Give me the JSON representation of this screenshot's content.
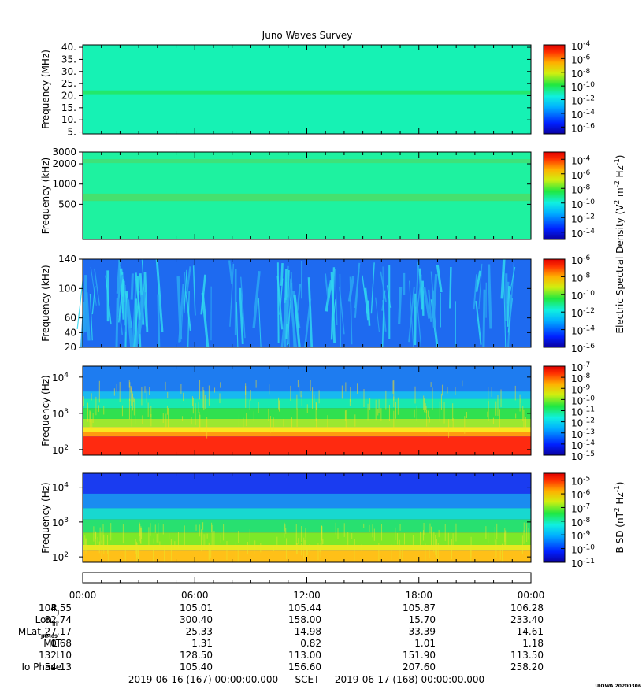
{
  "chart_data": {
    "type": "heatmap",
    "title": "Juno Waves Survey",
    "panels": [
      {
        "ylabel": "Frequency (MHz)",
        "yscale": "linear",
        "ylim": [
          4.2,
          41
        ],
        "yticks": [
          "40.",
          "35.",
          "30.",
          "25.",
          "20.",
          "15.",
          "10.",
          "5."
        ],
        "ytick_values": [
          40,
          35,
          30,
          25,
          20,
          15,
          10,
          5
        ],
        "colorbar_ticks": [
          {
            "b": "10",
            "e": "-4"
          },
          {
            "b": "10",
            "e": "-6"
          },
          {
            "b": "10",
            "e": "-8"
          },
          {
            "b": "10",
            "e": "-10"
          },
          {
            "b": "10",
            "e": "-12"
          },
          {
            "b": "10",
            "e": "-14"
          },
          {
            "b": "10",
            "e": "-16"
          }
        ],
        "colorbar_range_exp": [
          -17,
          -4
        ],
        "background": "#16f2b4",
        "bands": [
          {
            "y_lo": 20.6,
            "y_hi": 22.2,
            "color": "#22e86c"
          }
        ]
      },
      {
        "ylabel": "Frequency (kHz)",
        "yscale": "log",
        "ylim": [
          150,
          3000
        ],
        "yticks": [
          "3000",
          "2000",
          "1000",
          "500"
        ],
        "ytick_values": [
          3000,
          2000,
          1000,
          500
        ],
        "colorbar_ticks": [
          {
            "b": "10",
            "e": "-4"
          },
          {
            "b": "10",
            "e": "-6"
          },
          {
            "b": "10",
            "e": "-8"
          },
          {
            "b": "10",
            "e": "-10"
          },
          {
            "b": "10",
            "e": "-12"
          },
          {
            "b": "10",
            "e": "-14"
          }
        ],
        "colorbar_range_exp": [
          -15,
          -3
        ],
        "background": "#1ef2a0",
        "bands": [
          {
            "y_lo": 2050,
            "y_hi": 2350,
            "color": "#3ee27a"
          },
          {
            "y_lo": 560,
            "y_hi": 720,
            "color": "#46e06e"
          }
        ]
      },
      {
        "ylabel": "Frequency (kHz)",
        "yscale": "linear",
        "ylim": [
          20,
          140
        ],
        "yticks": [
          "140",
          "100",
          "60",
          "40",
          "20"
        ],
        "ytick_values": [
          140,
          100,
          60,
          40,
          20
        ],
        "colorbar_ticks": [
          {
            "b": "10",
            "e": "-6"
          },
          {
            "b": "10",
            "e": "-8"
          },
          {
            "b": "10",
            "e": "-10"
          },
          {
            "b": "10",
            "e": "-12"
          },
          {
            "b": "10",
            "e": "-14"
          },
          {
            "b": "10",
            "e": "-16"
          }
        ],
        "colorbar_range_exp": [
          -16,
          -6
        ],
        "background": "#1e6af0",
        "bands": []
      },
      {
        "ylabel": "Frequency (Hz)",
        "yscale": "log",
        "ylim": [
          70,
          20000
        ],
        "yticks": [
          {
            "b": "10",
            "e": "4"
          },
          {
            "b": "10",
            "e": "3"
          },
          {
            "b": "10",
            "e": "2"
          }
        ],
        "ytick_values": [
          10000,
          1000,
          100
        ],
        "colorbar_ticks": [
          {
            "b": "10",
            "e": "-7"
          },
          {
            "b": "10",
            "e": "-8"
          },
          {
            "b": "10",
            "e": "-9"
          },
          {
            "b": "10",
            "e": "-10"
          },
          {
            "b": "10",
            "e": "-11"
          },
          {
            "b": "10",
            "e": "-12"
          },
          {
            "b": "10",
            "e": "-13"
          },
          {
            "b": "10",
            "e": "-14"
          },
          {
            "b": "10",
            "e": "-15"
          }
        ],
        "colorbar_range_exp": [
          -15,
          -7
        ],
        "background": "#1e6af0",
        "bands": [
          {
            "y_lo": 4000,
            "y_hi": 20000,
            "color": "#1e7cf0"
          },
          {
            "y_lo": 2500,
            "y_hi": 4000,
            "color": "#18b8f0"
          },
          {
            "y_lo": 1400,
            "y_hi": 2500,
            "color": "#18e8b0"
          },
          {
            "y_lo": 700,
            "y_hi": 1400,
            "color": "#30e050"
          },
          {
            "y_lo": 420,
            "y_hi": 700,
            "color": "#9ce830"
          },
          {
            "y_lo": 300,
            "y_hi": 420,
            "color": "#f8e820"
          },
          {
            "y_lo": 230,
            "y_hi": 300,
            "color": "#ff9a10"
          },
          {
            "y_lo": 70,
            "y_hi": 230,
            "color": "#ff2a10"
          }
        ]
      },
      {
        "ylabel": "Frequency (Hz)",
        "yscale": "log",
        "ylim": [
          70,
          25000
        ],
        "yticks": [
          {
            "b": "10",
            "e": "4"
          },
          {
            "b": "10",
            "e": "3"
          },
          {
            "b": "10",
            "e": "2"
          }
        ],
        "ytick_values": [
          10000,
          1000,
          100
        ],
        "colorbar_ticks": [
          {
            "b": "10",
            "e": "-5"
          },
          {
            "b": "10",
            "e": "-6"
          },
          {
            "b": "10",
            "e": "-7"
          },
          {
            "b": "10",
            "e": "-8"
          },
          {
            "b": "10",
            "e": "-9"
          },
          {
            "b": "10",
            "e": "-10"
          },
          {
            "b": "10",
            "e": "-11"
          }
        ],
        "colorbar_range_exp": [
          -11,
          -4.5
        ],
        "background": "#1a3cf0",
        "bands": [
          {
            "y_lo": 6500,
            "y_hi": 25000,
            "color": "#1a3cf0"
          },
          {
            "y_lo": 2500,
            "y_hi": 6500,
            "color": "#1a8cf0"
          },
          {
            "y_lo": 1200,
            "y_hi": 2500,
            "color": "#18d8d0"
          },
          {
            "y_lo": 500,
            "y_hi": 1200,
            "color": "#28e070"
          },
          {
            "y_lo": 220,
            "y_hi": 500,
            "color": "#7ce828"
          },
          {
            "y_lo": 150,
            "y_hi": 220,
            "color": "#e8e820"
          },
          {
            "y_lo": 70,
            "y_hi": 150,
            "color": "#ffc018"
          }
        ]
      }
    ],
    "colorbar_labels": [
      {
        "main": "Electric Spectral Density (V",
        "sup1": "2",
        "mid": " m",
        "sup2": "-2",
        "mid2": " Hz",
        "sup3": "-1",
        "end": ")"
      },
      {
        "main": "B SD (nT",
        "sup1": "2",
        "mid": " Hz",
        "sup2": "-1",
        "mid2": "",
        "sup3": "",
        "end": ")"
      }
    ],
    "x_ticks": [
      "00:00",
      "06:00",
      "12:00",
      "18:00",
      "00:00"
    ],
    "ephemeris_rows": [
      {
        "label": "R",
        "sub": "J",
        "values": [
          "104.55",
          "105.01",
          "105.44",
          "105.87",
          "106.28"
        ]
      },
      {
        "label": "Lon",
        "sub": "III",
        "values": [
          "82.74",
          "300.40",
          "158.00",
          "15.70",
          "233.40"
        ]
      },
      {
        "label": "MLat",
        "sub": "JRM09",
        "values": [
          "-27.17",
          "-25.33",
          "-14.98",
          "-33.39",
          "-14.61"
        ]
      },
      {
        "label": "MLT",
        "sub": "",
        "values": [
          "0.68",
          "1.31",
          "0.82",
          "1.01",
          "1.18"
        ]
      },
      {
        "label": "L",
        "sub": "",
        "values": [
          "132.10",
          "128.50",
          "113.00",
          "151.90",
          "113.50"
        ]
      },
      {
        "label": "Io Phase",
        "sub": "",
        "values": [
          "54.13",
          "105.40",
          "156.60",
          "207.60",
          "258.20"
        ]
      }
    ],
    "footer": {
      "start": "2019-06-16 (167) 00:00:00.000",
      "mid": "SCET",
      "end": "2019-06-17 (168) 00:00:00.000"
    },
    "stamp": "UIOWA 20200306"
  }
}
